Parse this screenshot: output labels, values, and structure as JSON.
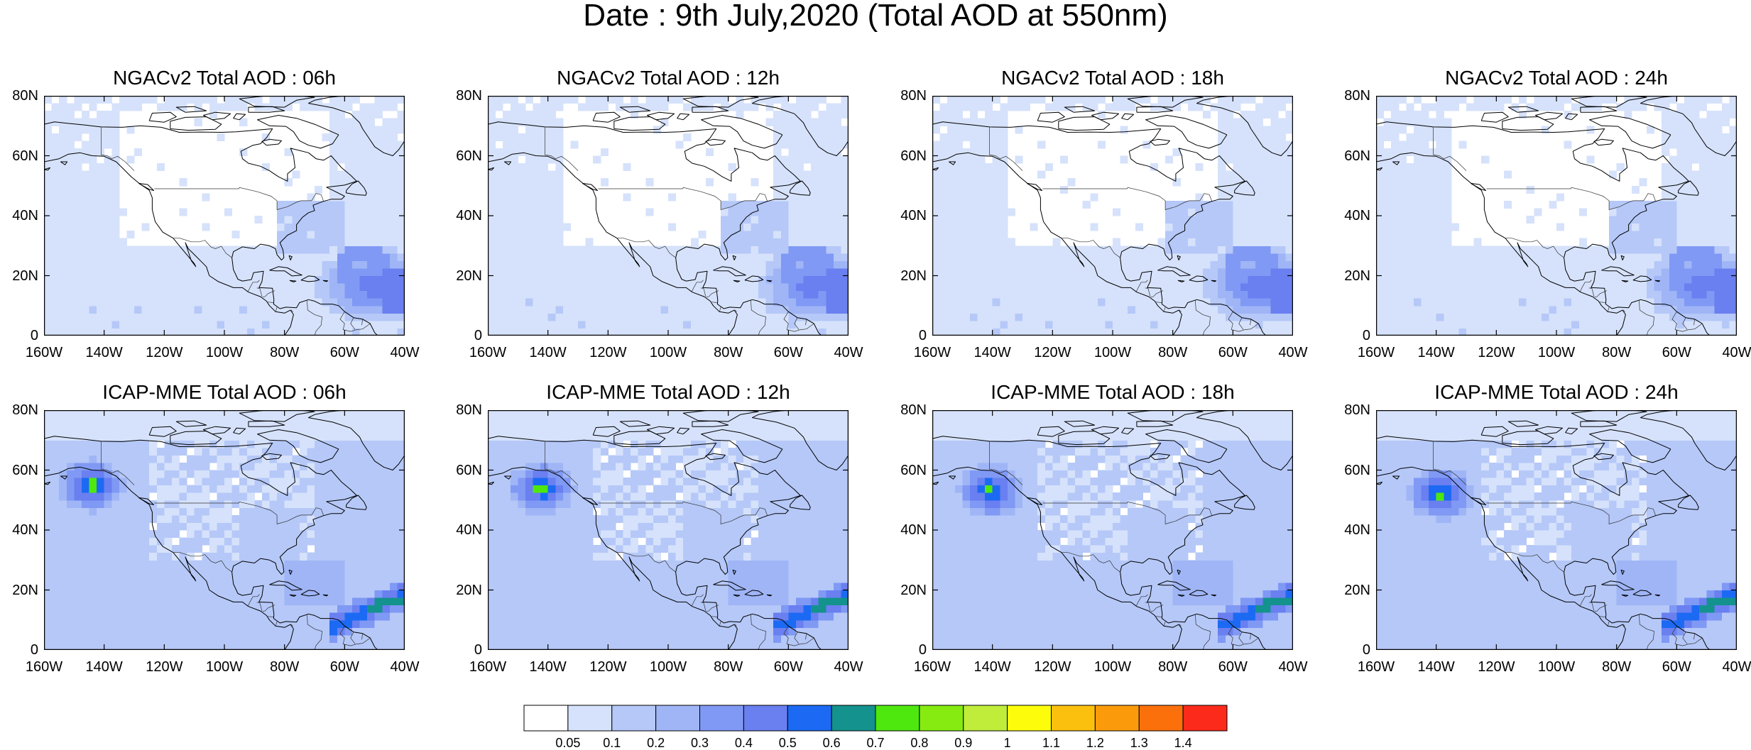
{
  "title": "Date : 9th July,2020 (Total AOD at 550nm)",
  "panels": [
    {
      "title": "NGACv2 Total AOD : 06h",
      "model": "NGACv2",
      "hour": 6
    },
    {
      "title": "NGACv2 Total AOD : 12h",
      "model": "NGACv2",
      "hour": 12
    },
    {
      "title": "NGACv2 Total AOD : 18h",
      "model": "NGACv2",
      "hour": 18
    },
    {
      "title": "NGACv2 Total AOD : 24h",
      "model": "NGACv2",
      "hour": 24
    },
    {
      "title": "ICAP-MME Total AOD : 06h",
      "model": "ICAP-MME",
      "hour": 6
    },
    {
      "title": "ICAP-MME Total AOD : 12h",
      "model": "ICAP-MME",
      "hour": 12
    },
    {
      "title": "ICAP-MME Total AOD : 18h",
      "model": "ICAP-MME",
      "hour": 18
    },
    {
      "title": "ICAP-MME Total AOD : 24h",
      "model": "ICAP-MME",
      "hour": 24
    }
  ],
  "lat_ticks": [
    "80N",
    "60N",
    "40N",
    "20N",
    "0"
  ],
  "lon_ticks": [
    "160W",
    "140W",
    "120W",
    "100W",
    "80W",
    "60W",
    "40W"
  ],
  "colorbar": {
    "labels": [
      "0.05",
      "0.1",
      "0.2",
      "0.3",
      "0.4",
      "0.5",
      "0.6",
      "0.7",
      "0.8",
      "0.9",
      "1",
      "1.1",
      "1.2",
      "1.3",
      "1.4"
    ],
    "colors": [
      "#ffffff",
      "#d6e2fb",
      "#b5c8f8",
      "#9fb5f6",
      "#8099f4",
      "#6a7ff0",
      "#1c6af4",
      "#14928e",
      "#4ee80e",
      "#85eb10",
      "#c0ec3a",
      "#fdfd0b",
      "#fbbf0d",
      "#fb9b0c",
      "#fb700b",
      "#fb2a1a"
    ]
  }
}
